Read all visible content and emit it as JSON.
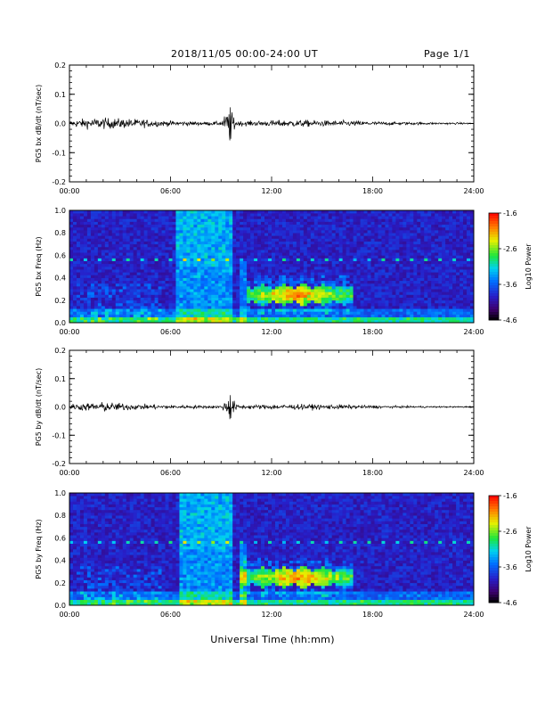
{
  "header": {
    "date_range": "2018/11/05  00:00-24:00 UT",
    "page": "Page 1/1"
  },
  "x_axis_label": "Universal Time (hh:mm)",
  "chart_data": [
    {
      "id": "bx-timeseries",
      "type": "line",
      "ylabel": "PG5 bx dB/dt (nT/sec)",
      "ylim": [
        -0.2,
        0.2
      ],
      "yticks": [
        "0.2",
        "0.1",
        "0.0",
        "-0.1",
        "-0.2"
      ],
      "yticks_values": [
        0.2,
        0.1,
        0.0,
        -0.1,
        -0.2
      ],
      "xlim_hours": [
        0,
        24
      ],
      "xticks": [
        "00:00",
        "06:00",
        "12:00",
        "18:00",
        "24:00"
      ],
      "series": [
        {
          "values": "noise trace around 0.0; typical amplitude ~0.01 nT/s, bursts ~0.03 near 01:00-03:00, spike to ~0.06 and dip to ~-0.06 near 09:30, decaying to ~0.004 by 24:00",
          "envelope_hours": [
            0,
            1,
            2,
            3,
            4,
            5,
            6,
            7,
            8,
            9,
            9.5,
            10,
            11,
            12,
            13,
            14,
            15,
            16,
            17,
            18,
            19,
            20,
            21,
            22,
            23,
            24
          ],
          "envelope_amplitude": [
            0.012,
            0.02,
            0.022,
            0.02,
            0.018,
            0.014,
            0.01,
            0.008,
            0.007,
            0.008,
            0.06,
            0.01,
            0.01,
            0.012,
            0.014,
            0.014,
            0.012,
            0.012,
            0.01,
            0.008,
            0.007,
            0.006,
            0.005,
            0.004,
            0.004,
            0.003
          ]
        }
      ]
    },
    {
      "id": "bx-spectrogram",
      "type": "heatmap",
      "ylabel": "PG5 bx Freq (Hz)",
      "ylim": [
        0.0,
        1.0
      ],
      "yticks": [
        "1.0",
        "0.8",
        "0.6",
        "0.4",
        "0.2",
        "0.0"
      ],
      "yticks_values": [
        1.0,
        0.8,
        0.6,
        0.4,
        0.2,
        0.0
      ],
      "xlim_hours": [
        0,
        24
      ],
      "xticks": [
        "00:00",
        "06:00",
        "12:00",
        "18:00",
        "24:00"
      ],
      "colorbar": {
        "label": "Log10 Power",
        "range": [
          -4.6,
          -1.6
        ],
        "ticks": [
          "-1.6",
          "-2.6",
          "-3.6",
          "-4.6"
        ],
        "ticks_values": [
          -1.6,
          -2.6,
          -3.6,
          -4.6
        ]
      },
      "features": {
        "broadband_block_hours": [
          6.3,
          9.7
        ],
        "pc1_band": {
          "start_hour": 10.5,
          "end_hour": 16.8,
          "freq_center": 0.25,
          "peak_hour": 13.5
        },
        "line_frequency": 0.57
      }
    },
    {
      "id": "by-timeseries",
      "type": "line",
      "ylabel": "PG5 by dB/dt (nT/sec)",
      "ylim": [
        -0.2,
        0.2
      ],
      "yticks": [
        "0.2",
        "0.1",
        "0.0",
        "-0.1",
        "-0.2"
      ],
      "yticks_values": [
        0.2,
        0.1,
        0.0,
        -0.1,
        -0.2
      ],
      "xlim_hours": [
        0,
        24
      ],
      "xticks": [
        "00:00",
        "06:00",
        "12:00",
        "18:00",
        "24:00"
      ],
      "series": [
        {
          "values": "noise trace around 0.0; typical amplitude ~0.01 nT/s, bursts ~0.025 near 01:30, spike to ~0.045 and dip to ~-0.04 near 09:30, decaying to ~0.003 by 24:00",
          "envelope_hours": [
            0,
            1,
            2,
            3,
            4,
            5,
            6,
            7,
            8,
            9,
            9.5,
            10,
            11,
            12,
            13,
            14,
            15,
            16,
            17,
            18,
            19,
            20,
            21,
            22,
            23,
            24
          ],
          "envelope_amplitude": [
            0.012,
            0.016,
            0.02,
            0.016,
            0.012,
            0.01,
            0.008,
            0.007,
            0.006,
            0.006,
            0.045,
            0.008,
            0.009,
            0.01,
            0.011,
            0.011,
            0.01,
            0.01,
            0.008,
            0.006,
            0.005,
            0.004,
            0.004,
            0.003,
            0.003,
            0.003
          ]
        }
      ]
    },
    {
      "id": "by-spectrogram",
      "type": "heatmap",
      "ylabel": "PG5 by Freq (Hz)",
      "ylim": [
        0.0,
        1.0
      ],
      "yticks": [
        "1.0",
        "0.8",
        "0.6",
        "0.4",
        "0.2",
        "0.0"
      ],
      "yticks_values": [
        1.0,
        0.8,
        0.6,
        0.4,
        0.2,
        0.0
      ],
      "xlim_hours": [
        0,
        24
      ],
      "xticks": [
        "00:00",
        "06:00",
        "12:00",
        "18:00",
        "24:00"
      ],
      "colorbar": {
        "label": "Log10 Power",
        "range": [
          -4.6,
          -1.6
        ],
        "ticks": [
          "-1.6",
          "-2.6",
          "-3.6",
          "-4.6"
        ],
        "ticks_values": [
          -1.6,
          -2.6,
          -3.6,
          -4.6
        ]
      },
      "features": {
        "broadband_block_hours": [
          6.5,
          9.7
        ],
        "pc1_band": {
          "start_hour": 10.2,
          "end_hour": 16.8,
          "freq_center": 0.25,
          "peak_hour": 13.5
        },
        "line_frequency": 0.57
      }
    }
  ]
}
